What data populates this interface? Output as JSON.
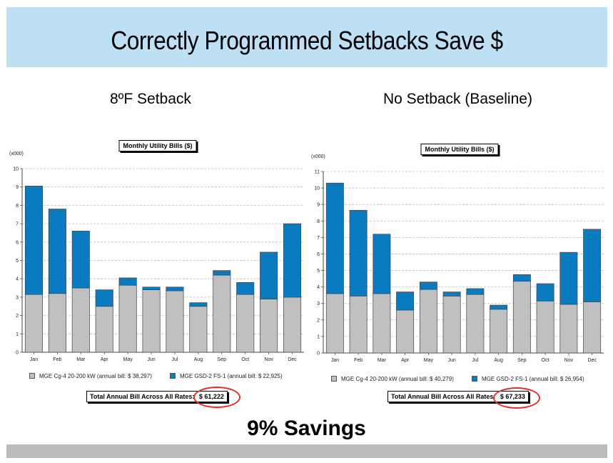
{
  "page": {
    "title": "Correctly Programmed Setbacks Save $",
    "savings_text": "9% Savings"
  },
  "panels": [
    {
      "subtitle": "8ºF Setback",
      "total_label": "Total Annual Bill Across All Rates:",
      "total_value": "$ 61,222"
    },
    {
      "subtitle": "No Setback (Baseline)",
      "total_label": "Total Annual Bill Across All Rates:",
      "total_value": "$ 67,233"
    }
  ],
  "colors": {
    "series_gray": "#c0c0c0",
    "series_blue": "#0a7bc0",
    "title_bar": "#bde0f5",
    "highlight_ring": "#e0312a"
  },
  "chart_data": [
    {
      "type": "bar",
      "stacked": true,
      "title": "Monthly Utility Bills ($)",
      "unit_label": "(x000)",
      "ylim": [
        0,
        10
      ],
      "yticks": [
        0,
        1,
        2,
        3,
        4,
        5,
        6,
        7,
        8,
        9,
        10
      ],
      "categories": [
        "Jan",
        "Feb",
        "Mar",
        "Apr",
        "May",
        "Jun",
        "Jul",
        "Aug",
        "Sep",
        "Oct",
        "Nov",
        "Dec"
      ],
      "series": [
        {
          "name": "MGE Cg-4 20-200 kW (annual bill: $ 38,297)",
          "color": "#c0c0c0",
          "values": [
            3.15,
            3.2,
            3.5,
            2.5,
            3.65,
            3.4,
            3.35,
            2.5,
            4.2,
            3.15,
            2.9,
            3.0
          ]
        },
        {
          "name": "MGE GSD-2 FS-1 (annual bill: $ 22,925)",
          "color": "#0a7bc0",
          "values": [
            5.9,
            4.6,
            3.1,
            0.9,
            0.4,
            0.15,
            0.2,
            0.2,
            0.25,
            0.65,
            2.55,
            4.0
          ]
        }
      ],
      "grid": true,
      "legend_position": "bottom"
    },
    {
      "type": "bar",
      "stacked": true,
      "title": "Monthly Utility Bills ($)",
      "unit_label": "(x000)",
      "ylim": [
        0,
        11
      ],
      "yticks": [
        0,
        1,
        2,
        3,
        4,
        5,
        6,
        7,
        8,
        9,
        10,
        11
      ],
      "categories": [
        "Jan",
        "Feb",
        "Mar",
        "Apr",
        "May",
        "Jun",
        "Jul",
        "Aug",
        "Sep",
        "Oct",
        "Nov",
        "Dec"
      ],
      "series": [
        {
          "name": "MGE Cg-4 20-200 kW (annual bill: $ 40,279)",
          "color": "#c0c0c0",
          "values": [
            3.6,
            3.45,
            3.6,
            2.6,
            3.85,
            3.45,
            3.55,
            2.65,
            4.35,
            3.15,
            2.95,
            3.1
          ]
        },
        {
          "name": "MGE GSD-2 FS-1 (annual bill: $ 26,954)",
          "color": "#0a7bc0",
          "values": [
            6.7,
            5.2,
            3.6,
            1.1,
            0.45,
            0.25,
            0.35,
            0.25,
            0.4,
            1.05,
            3.15,
            4.4
          ]
        }
      ],
      "grid": true,
      "legend_position": "bottom"
    }
  ]
}
